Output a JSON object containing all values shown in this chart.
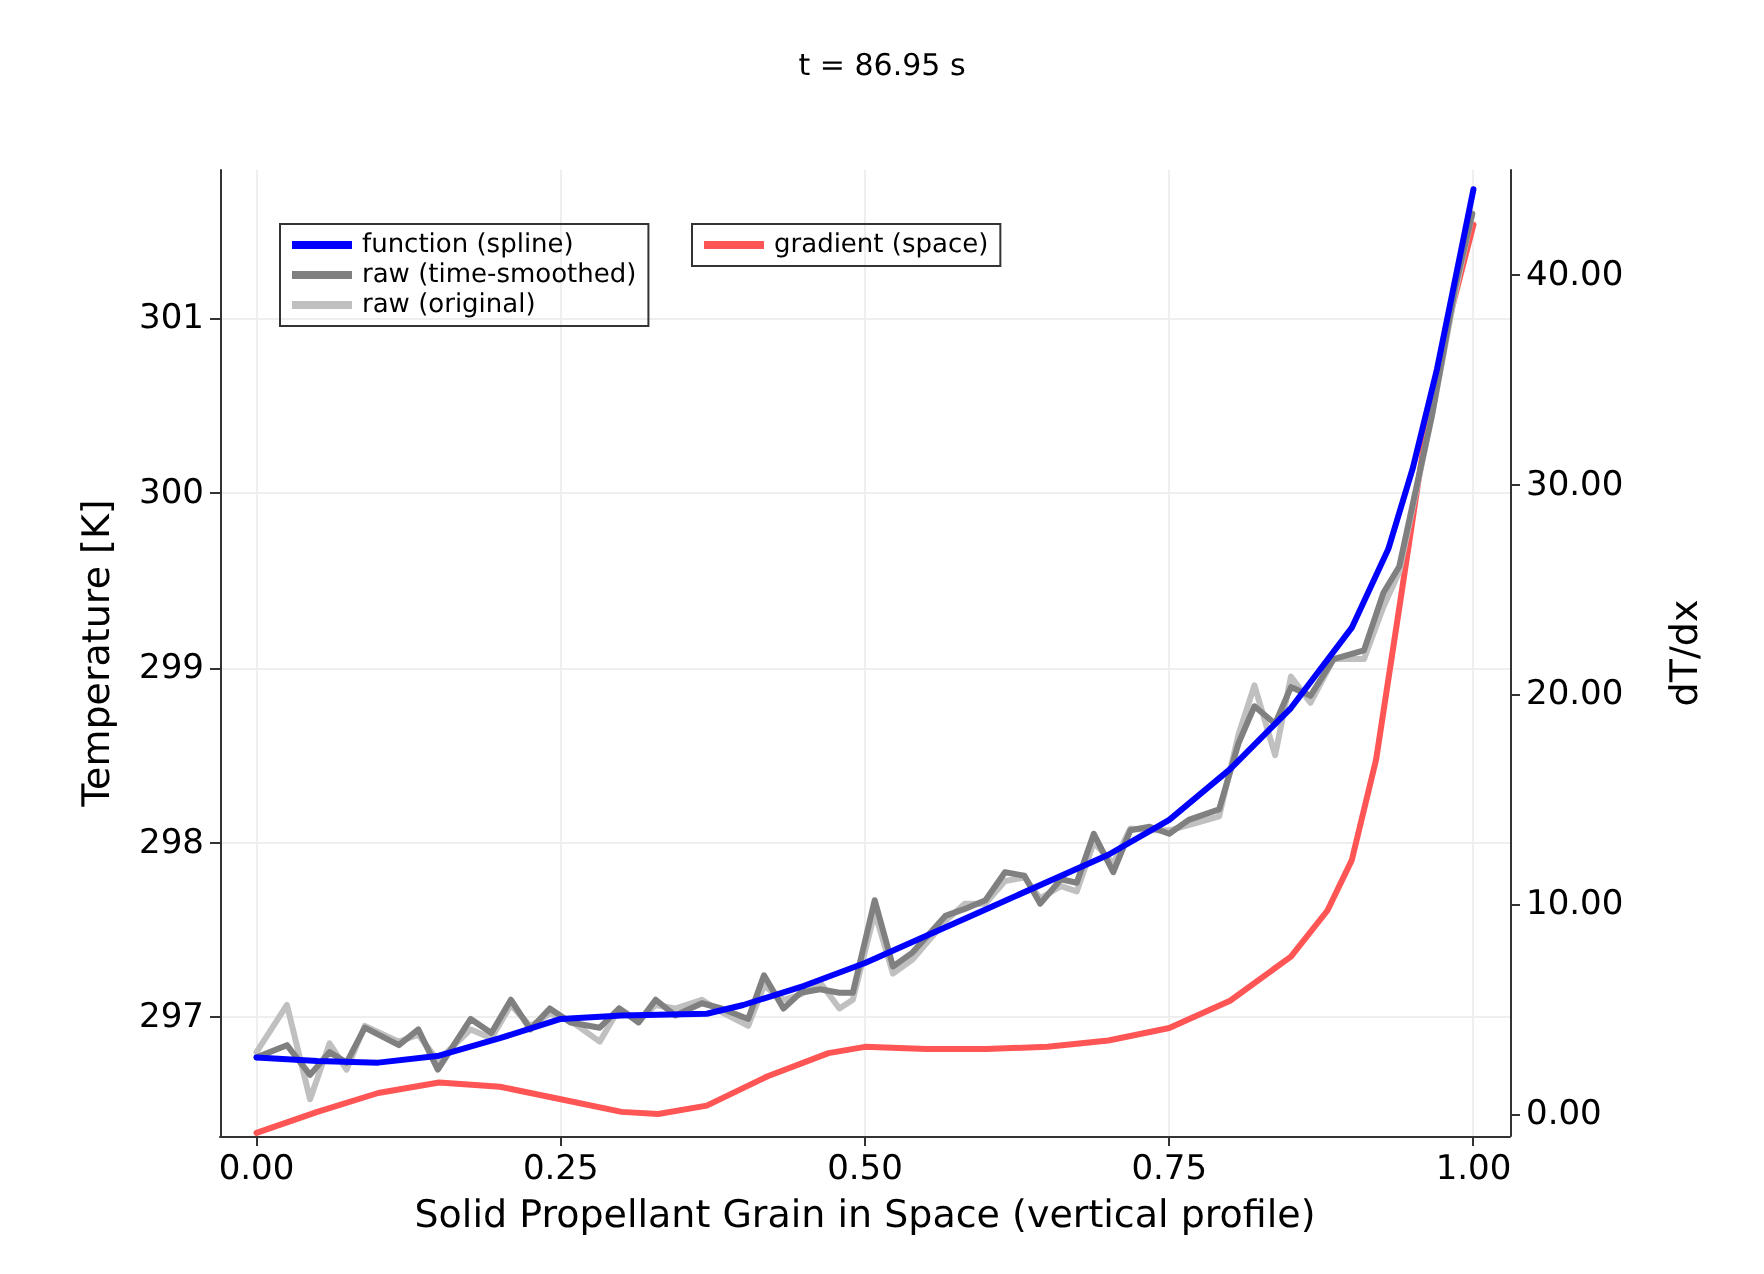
{
  "chart_data": {
    "type": "line",
    "title": "t = 86.95 s",
    "xlabel": "Solid Propellant Grain in Space (vertical profile)",
    "ylabel": "Temperature [K]",
    "y2label": "dT/dx",
    "xlim": [
      -0.03,
      1.03
    ],
    "ylim": [
      296.32,
      301.85
    ],
    "y2lim": [
      -1.05,
      45
    ],
    "xticks": [
      {
        "value": 0,
        "label": "0.00"
      },
      {
        "value": 0.25,
        "label": "0.25"
      },
      {
        "value": 0.5,
        "label": "0.50"
      },
      {
        "value": 0.75,
        "label": "0.75"
      },
      {
        "value": 1,
        "label": "1.00"
      }
    ],
    "yticks": [
      297,
      298,
      299,
      300,
      301
    ],
    "y2ticks": [
      {
        "value": 0,
        "label": "0.00"
      },
      {
        "value": 10,
        "label": "10.00"
      },
      {
        "value": 20,
        "label": "20.00"
      },
      {
        "value": 30,
        "label": "30.00"
      },
      {
        "value": 40,
        "label": "40.00"
      }
    ],
    "grid": true,
    "legend": "top left",
    "marker": "none",
    "series": [
      {
        "name": "function (spline)",
        "color": "#0000ff",
        "x": [
          0,
          0.05,
          0.1,
          0.15,
          0.2,
          0.25,
          0.3,
          0.37,
          0.4,
          0.45,
          0.5,
          0.6,
          0.7,
          0.75,
          0.8,
          0.85,
          0.9,
          0.93,
          0.95,
          0.97,
          1.0
        ],
        "values": [
          296.77,
          296.75,
          296.74,
          296.78,
          296.88,
          296.99,
          297.01,
          297.02,
          297.07,
          297.18,
          297.31,
          297.62,
          297.93,
          298.13,
          298.42,
          298.77,
          299.23,
          299.68,
          300.14,
          300.71,
          301.74
        ]
      },
      {
        "name": "raw (time-smoothed)",
        "color": "#808080",
        "x": [
          0,
          0.025,
          0.044,
          0.06,
          0.074,
          0.089,
          0.117,
          0.133,
          0.149,
          0.176,
          0.193,
          0.209,
          0.225,
          0.241,
          0.258,
          0.282,
          0.298,
          0.314,
          0.328,
          0.344,
          0.366,
          0.382,
          0.404,
          0.417,
          0.433,
          0.447,
          0.463,
          0.479,
          0.49,
          0.508,
          0.523,
          0.539,
          0.566,
          0.582,
          0.599,
          0.615,
          0.631,
          0.644,
          0.661,
          0.674,
          0.688,
          0.704,
          0.718,
          0.734,
          0.75,
          0.766,
          0.791,
          0.807,
          0.82,
          0.837,
          0.85,
          0.866,
          0.885,
          0.91,
          0.926,
          0.939,
          0.966,
          0.985,
          0.999
        ],
        "values": [
          296.77,
          296.84,
          296.67,
          296.8,
          296.74,
          296.94,
          296.84,
          296.93,
          296.7,
          296.99,
          296.91,
          297.1,
          296.93,
          297.05,
          296.97,
          296.94,
          297.05,
          296.97,
          297.1,
          297.01,
          297.08,
          297.05,
          296.99,
          297.24,
          297.05,
          297.14,
          297.16,
          297.14,
          297.14,
          297.67,
          297.29,
          297.37,
          297.58,
          297.62,
          297.67,
          297.83,
          297.81,
          297.65,
          297.79,
          297.77,
          298.05,
          297.83,
          298.07,
          298.09,
          298.05,
          298.13,
          298.19,
          298.57,
          298.78,
          298.68,
          298.89,
          298.84,
          299.05,
          299.1,
          299.43,
          299.58,
          300.45,
          301.18,
          301.6
        ]
      },
      {
        "name": "raw (original)",
        "color": "#c0c0c0",
        "x": [
          0,
          0.025,
          0.044,
          0.06,
          0.074,
          0.089,
          0.117,
          0.133,
          0.149,
          0.176,
          0.193,
          0.209,
          0.225,
          0.241,
          0.258,
          0.282,
          0.298,
          0.314,
          0.328,
          0.344,
          0.366,
          0.382,
          0.404,
          0.417,
          0.433,
          0.447,
          0.463,
          0.479,
          0.49,
          0.508,
          0.523,
          0.539,
          0.566,
          0.582,
          0.599,
          0.615,
          0.631,
          0.644,
          0.661,
          0.674,
          0.688,
          0.704,
          0.718,
          0.734,
          0.75,
          0.766,
          0.791,
          0.807,
          0.82,
          0.837,
          0.85,
          0.866,
          0.885,
          0.91,
          0.926,
          0.939,
          0.966,
          0.985,
          0.999
        ],
        "values": [
          296.8,
          297.07,
          296.53,
          296.85,
          296.7,
          296.95,
          296.86,
          296.9,
          296.75,
          296.93,
          296.88,
          297.07,
          296.95,
          297.02,
          296.98,
          296.86,
          297.05,
          296.98,
          297.07,
          297.05,
          297.1,
          297.03,
          296.95,
          297.18,
          297.1,
          297.13,
          297.2,
          297.05,
          297.1,
          297.6,
          297.25,
          297.33,
          297.55,
          297.65,
          297.65,
          297.78,
          297.8,
          297.68,
          297.75,
          297.72,
          298.0,
          297.88,
          298.08,
          298.07,
          298.07,
          298.1,
          298.15,
          298.62,
          298.9,
          298.5,
          298.95,
          298.8,
          299.05,
          299.05,
          299.35,
          299.55,
          300.45,
          301.15,
          301.6
        ]
      },
      {
        "name": "gradient (space)",
        "color": "#ff5555",
        "axis": "y2",
        "x": [
          0,
          0.05,
          0.1,
          0.15,
          0.2,
          0.25,
          0.3,
          0.33,
          0.37,
          0.42,
          0.47,
          0.5,
          0.55,
          0.6,
          0.65,
          0.7,
          0.75,
          0.8,
          0.85,
          0.88,
          0.9,
          0.92,
          0.94,
          0.96,
          0.98,
          1.0
        ],
        "values": [
          -0.9,
          0.1,
          1.0,
          1.5,
          1.3,
          0.7,
          0.1,
          0.0,
          0.4,
          1.8,
          2.9,
          3.2,
          3.1,
          3.1,
          3.2,
          3.5,
          4.1,
          5.4,
          7.5,
          9.7,
          12.1,
          16.9,
          24.5,
          32.2,
          37.9,
          42.4
        ]
      }
    ]
  }
}
